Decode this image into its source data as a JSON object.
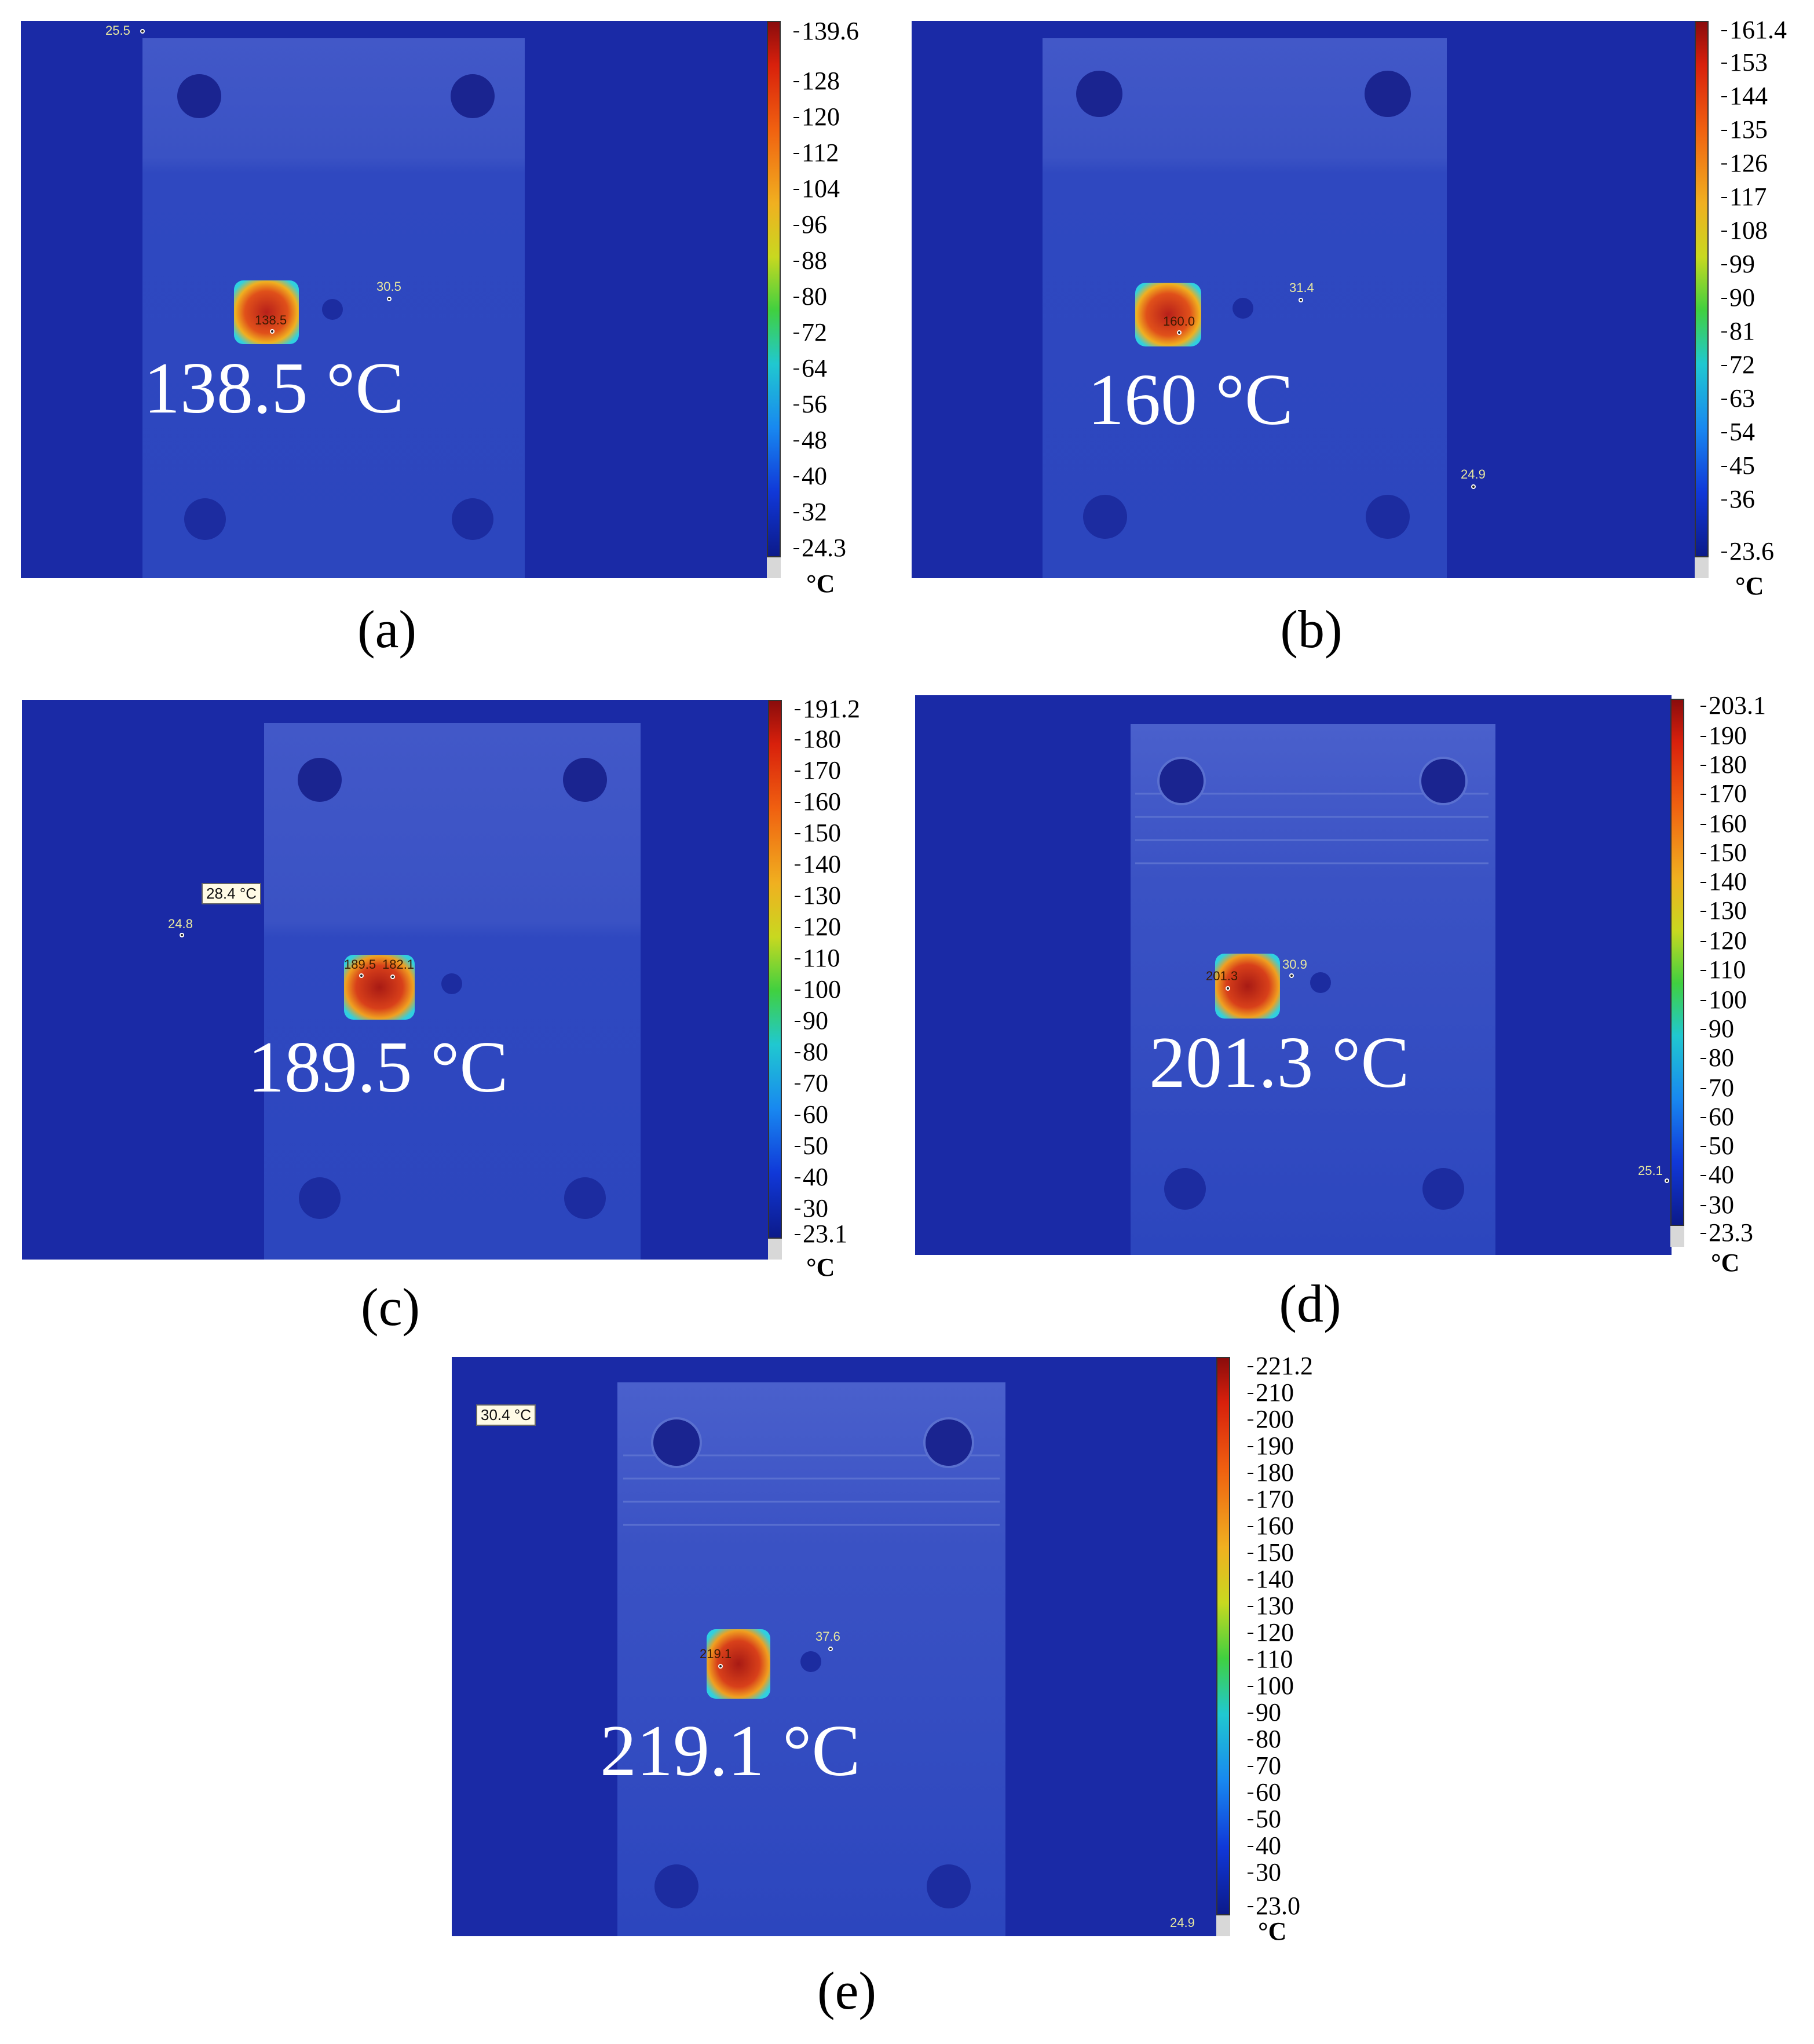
{
  "panels": [
    {
      "caption": "(a)",
      "main_label": "138.5 °C",
      "spots": [
        "25.5",
        "30.5",
        "138.5"
      ],
      "colorbar": {
        "max": "139.6",
        "ticks": [
          "139.6",
          "128",
          "120",
          "112",
          "104",
          "96",
          "88",
          "80",
          "72",
          "64",
          "56",
          "48",
          "40",
          "32",
          "24.3"
        ],
        "unit": "°C"
      }
    },
    {
      "caption": "(b)",
      "main_label": "160 °C",
      "spots": [
        "31.4",
        "24.9",
        "160.0"
      ],
      "colorbar": {
        "max": "161.4",
        "ticks": [
          "161.4",
          "153",
          "144",
          "135",
          "126",
          "117",
          "108",
          "99",
          "90",
          "81",
          "72",
          "63",
          "54",
          "45",
          "36",
          "23.6"
        ],
        "unit": "°C"
      }
    },
    {
      "caption": "(c)",
      "main_label": "189.5 °C",
      "spots": [
        "24.8",
        "189.5",
        "182.1"
      ],
      "info_box": "28.4 °C",
      "colorbar": {
        "max": "191.2",
        "ticks": [
          "191.2",
          "180",
          "170",
          "160",
          "150",
          "140",
          "130",
          "120",
          "110",
          "100",
          "90",
          "80",
          "70",
          "60",
          "50",
          "40",
          "30",
          "23.1"
        ],
        "unit": "°C"
      }
    },
    {
      "caption": "(d)",
      "main_label": "201.3 °C",
      "spots": [
        "30.9",
        "201.3",
        "25.1"
      ],
      "colorbar": {
        "max": "203.1",
        "ticks": [
          "203.1",
          "190",
          "180",
          "170",
          "160",
          "150",
          "140",
          "130",
          "120",
          "110",
          "100",
          "90",
          "80",
          "70",
          "60",
          "50",
          "40",
          "30",
          "23.3"
        ],
        "unit": "°C"
      }
    },
    {
      "caption": "(e)",
      "main_label": "219.1 °C",
      "spots": [
        "37.6",
        "219.1",
        "24.9"
      ],
      "info_box": "30.4 °C",
      "colorbar": {
        "max": "221.2",
        "ticks": [
          "221.2",
          "210",
          "200",
          "190",
          "180",
          "170",
          "160",
          "150",
          "140",
          "130",
          "120",
          "110",
          "100",
          "90",
          "80",
          "70",
          "60",
          "50",
          "40",
          "30",
          "23.0"
        ],
        "unit": "°C"
      }
    }
  ],
  "colors": {
    "background": "#1a2aa6",
    "plate": "#3450c8",
    "hotspot_core": "#c8321a",
    "hotspot_edge": "#f0a020"
  }
}
